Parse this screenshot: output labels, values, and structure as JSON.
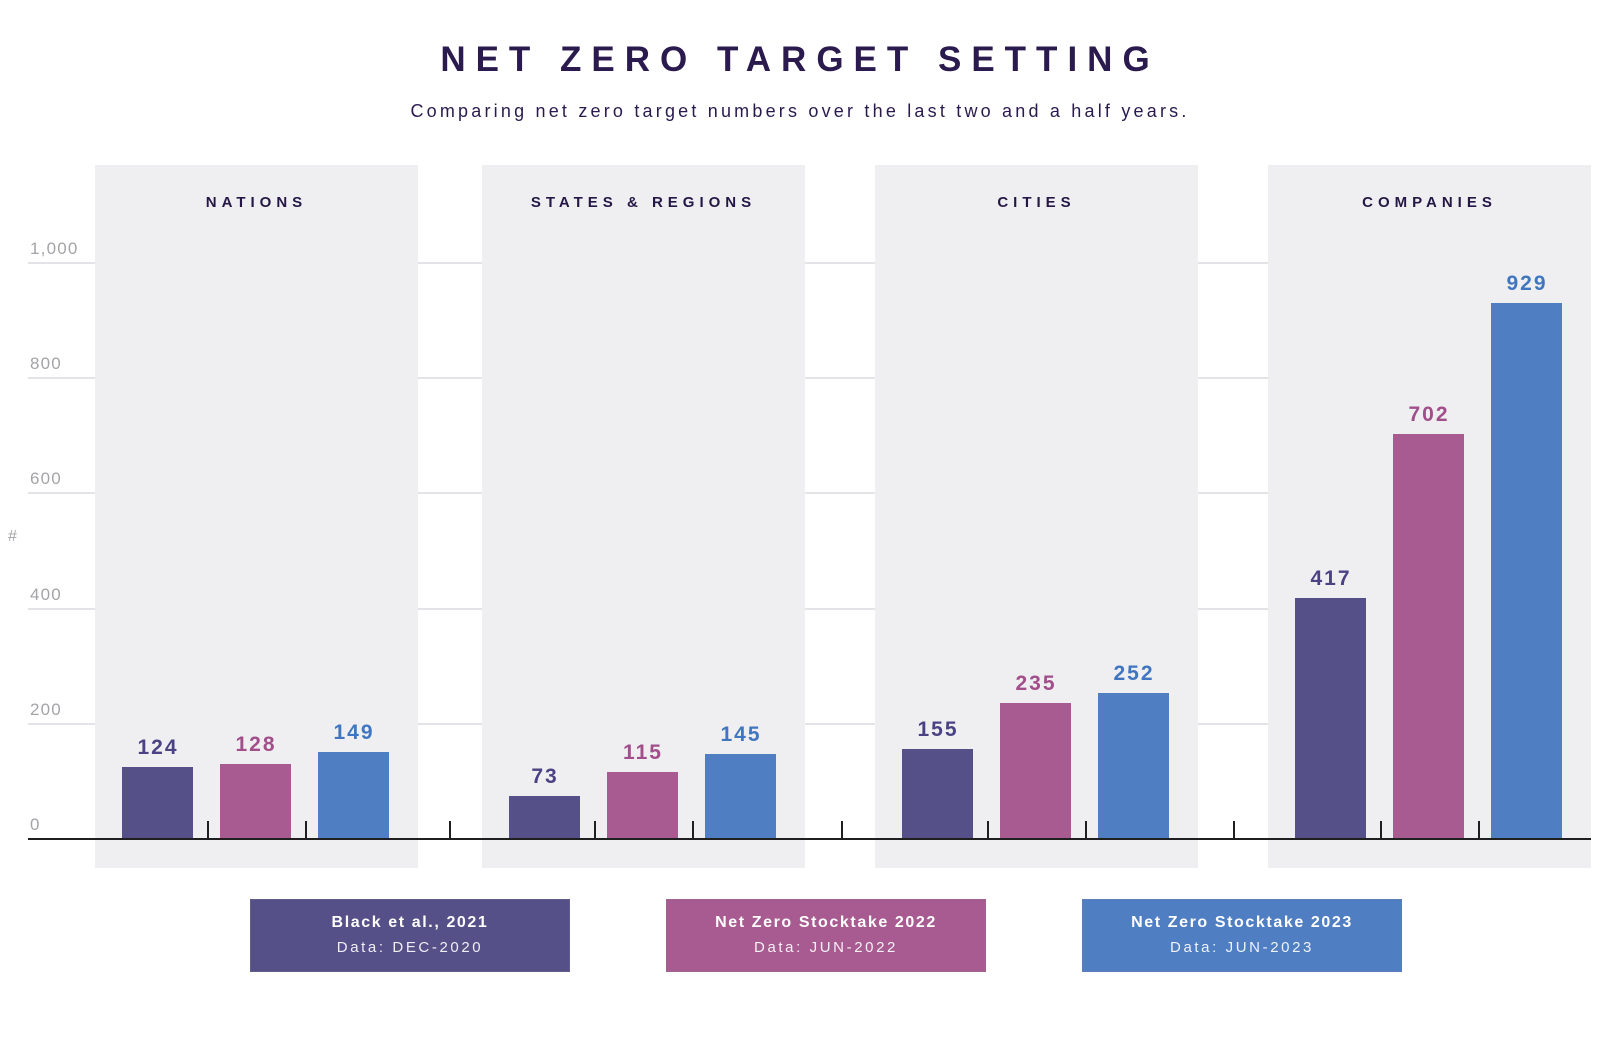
{
  "header": {
    "title": "NET ZERO TARGET SETTING",
    "subtitle": "Comparing net zero target numbers over the last two and a half years."
  },
  "chart_data": {
    "type": "bar",
    "title": "NET ZERO TARGET SETTING",
    "subtitle": "Comparing net zero target numbers over the last two and a half years.",
    "categories": [
      "NATIONS",
      "STATES & REGIONS",
      "CITIES",
      "COMPANIES"
    ],
    "series": [
      {
        "name": "Black et al., 2021",
        "note": "Data: DEC-2020",
        "color": "#565089",
        "label_color": "#4a4284",
        "values": [
          124,
          73,
          155,
          417
        ]
      },
      {
        "name": "Net Zero Stocktake 2022",
        "note": "Data: JUN-2022",
        "color": "#a85b91",
        "label_color": "#a14e8a",
        "values": [
          128,
          115,
          235,
          702
        ]
      },
      {
        "name": "Net Zero Stocktake 2023",
        "note": "Data: JUN-2023",
        "color": "#4f7ec2",
        "label_color": "#4076bf",
        "values": [
          149,
          145,
          252,
          929
        ]
      }
    ],
    "ylabel": "#",
    "ylim": [
      0,
      1000
    ],
    "yticks": [
      {
        "value": 1000,
        "label": "1,000"
      },
      {
        "value": 800,
        "label": "800"
      },
      {
        "value": 600,
        "label": "600"
      },
      {
        "value": 400,
        "label": "400"
      },
      {
        "value": 200,
        "label": "200"
      },
      {
        "value": 0,
        "label": "0"
      }
    ],
    "grid": true,
    "legend_position": "bottom"
  },
  "colors": {
    "title_text": "#2a1a4e",
    "category_text": "#241745",
    "axis_text": "#a4a4a8",
    "panel_background": "#efeff1",
    "grid_line": "#e4e4e8",
    "axis_line": "#1f1f1f",
    "page_background": "#ffffff"
  }
}
